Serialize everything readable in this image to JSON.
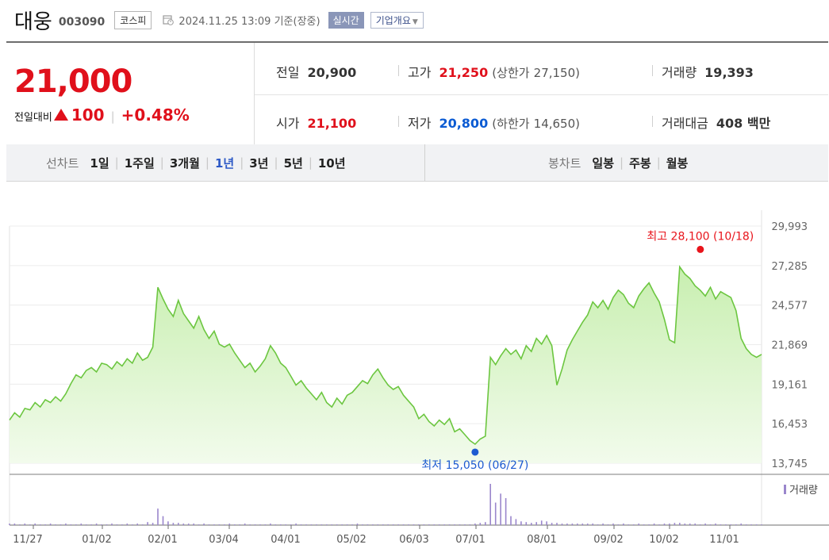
{
  "stock": {
    "name": "대웅",
    "code": "003090",
    "market": "코스피",
    "as_of": "2024.11.25 13:09 기준(장중)",
    "realtime_label": "실시간",
    "overview_label": "기업개요"
  },
  "quote": {
    "price": "21,000",
    "change_label": "전일대비",
    "change_amount": "100",
    "change_pct": "+0.48%",
    "prev_close_label": "전일",
    "prev_close": "20,900",
    "high_label": "고가",
    "high": "21,250",
    "upper_limit_label": "(상한가",
    "upper_limit": "27,150)",
    "volume_label": "거래량",
    "volume": "19,393",
    "open_label": "시가",
    "open": "21,100",
    "low_label": "저가",
    "low": "20,800",
    "lower_limit_label": "(하한가",
    "lower_limit": "14,650)",
    "turnover_label": "거래대금",
    "turnover": "408 백만"
  },
  "period_bar": {
    "line_chart_label": "선차트",
    "periods": [
      "1일",
      "1주일",
      "3개월",
      "1년",
      "3년",
      "5년",
      "10년"
    ],
    "selected": "1년",
    "candle_chart_label": "봉차트",
    "candle_periods": [
      "일봉",
      "주봉",
      "월봉"
    ]
  },
  "chart_data": {
    "type": "area",
    "y_ticks": [
      29993,
      27285,
      24577,
      21869,
      19161,
      16453,
      13745
    ],
    "ylim": [
      13745,
      29993
    ],
    "x_labels": [
      "11/27",
      "01/02",
      "02/01",
      "03/04",
      "04/01",
      "05/02",
      "06/03",
      "07/01",
      "08/01",
      "09/02",
      "10/02",
      "11/01"
    ],
    "grid": true,
    "max_annotation": "최고 28,100 (10/18)",
    "min_annotation": "최저 15,050 (06/27)",
    "volume_legend": "거래량",
    "colors": {
      "line": "#6cc640",
      "fill_top": "#c8efb0",
      "fill_bottom": "#f2fbec",
      "max_dot": "#e8141b",
      "min_dot": "#1e5bd1",
      "volume": "#9a86cc",
      "grid": "#ececec"
    },
    "price_series": [
      16700,
      17200,
      16900,
      17500,
      17400,
      17900,
      17600,
      18100,
      17900,
      18300,
      18000,
      18500,
      19200,
      19800,
      19600,
      20100,
      20300,
      20000,
      20600,
      20500,
      20200,
      20700,
      20400,
      20900,
      20600,
      21300,
      20800,
      21000,
      21700,
      25800,
      25000,
      24300,
      23800,
      24900,
      24000,
      23500,
      23000,
      23800,
      22900,
      22300,
      22800,
      21900,
      21700,
      21900,
      21300,
      20800,
      20300,
      20600,
      20000,
      20400,
      20900,
      21800,
      21300,
      20600,
      20300,
      19700,
      19100,
      19400,
      18900,
      18500,
      18100,
      18600,
      17900,
      17600,
      18200,
      17800,
      18400,
      18600,
      19000,
      19400,
      19200,
      19800,
      20200,
      19600,
      19100,
      18800,
      19000,
      18400,
      18000,
      17600,
      16800,
      17100,
      16600,
      16300,
      16700,
      16400,
      16800,
      15900,
      16100,
      15700,
      15300,
      15050,
      15400,
      15600,
      21000,
      20500,
      21100,
      21600,
      21200,
      21500,
      20900,
      21800,
      21400,
      22300,
      21900,
      22500,
      21800,
      19100,
      20200,
      21500,
      22200,
      22800,
      23400,
      23900,
      24800,
      24400,
      24900,
      24300,
      25100,
      25600,
      25300,
      24700,
      24400,
      25200,
      25700,
      26100,
      25400,
      24800,
      23600,
      22200,
      22000,
      27200,
      26700,
      26400,
      25900,
      25600,
      25200,
      25800,
      25000,
      25500,
      25300,
      25100,
      24200,
      22300,
      21600,
      21200,
      21000,
      21200
    ],
    "volume_series": [
      2,
      2,
      1,
      2,
      1,
      2,
      1,
      1,
      2,
      1,
      1,
      2,
      1,
      1,
      2,
      1,
      1,
      2,
      1,
      1,
      2,
      1,
      1,
      2,
      1,
      2,
      1,
      4,
      3,
      22,
      12,
      5,
      3,
      3,
      2,
      2,
      2,
      1,
      2,
      1,
      1,
      1,
      1,
      2,
      1,
      1,
      2,
      1,
      1,
      1,
      1,
      2,
      1,
      1,
      1,
      1,
      2,
      1,
      1,
      1,
      1,
      1,
      1,
      1,
      1,
      1,
      1,
      1,
      2,
      1,
      1,
      1,
      1,
      1,
      1,
      1,
      1,
      1,
      1,
      1,
      1,
      1,
      1,
      1,
      1,
      1,
      1,
      1,
      1,
      1,
      1,
      2,
      3,
      4,
      55,
      30,
      42,
      36,
      12,
      8,
      5,
      4,
      3,
      4,
      6,
      5,
      3,
      3,
      2,
      2,
      2,
      2,
      2,
      2,
      2,
      1,
      2,
      1,
      2,
      1,
      2,
      1,
      1,
      2,
      1,
      1,
      2,
      1,
      2,
      2,
      3,
      3,
      2,
      2,
      2,
      1,
      2,
      1,
      2,
      1,
      1,
      1,
      1,
      2,
      1,
      1,
      1,
      1
    ]
  }
}
